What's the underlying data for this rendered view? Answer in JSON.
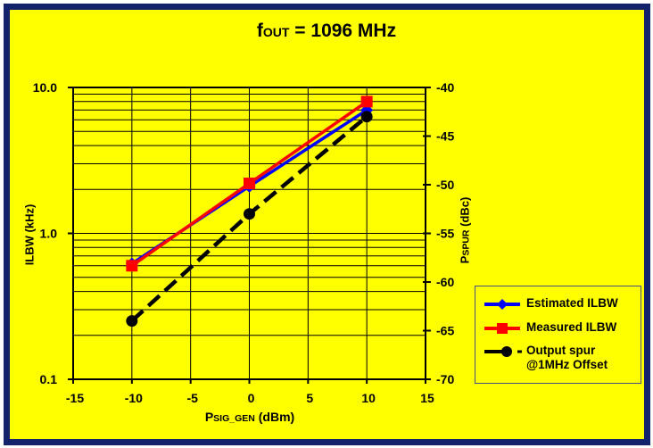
{
  "page": {
    "background_color": "#ffff00",
    "frame_border_color": "#14216b",
    "outer_margin_color": "#ffffff"
  },
  "title": {
    "main": "f",
    "sub": "OUT",
    "suffix": " = 1096 MHz"
  },
  "chart_data": {
    "type": "line",
    "title": "fOUT = 1096 MHz",
    "grid": true,
    "legend_position": "right-bottom",
    "x": [
      -10,
      0,
      10
    ],
    "x_axis": {
      "label": {
        "main": "P",
        "sub": "SIG_GEN",
        "suffix": " (dBm)"
      },
      "min": -15,
      "max": 15,
      "tick_values": [
        -15,
        -10,
        -5,
        0,
        5,
        10,
        15
      ],
      "tick_labels": [
        "-15",
        "-10",
        "-5",
        "0",
        "5",
        "10",
        "15"
      ]
    },
    "left_axis": {
      "label": "ILBW (kHz)",
      "scale": "log",
      "min": 0.1,
      "max": 10,
      "tick_values": [
        10,
        1,
        0.1
      ],
      "tick_labels": [
        "10.0",
        "1.0",
        "0.1"
      ]
    },
    "right_axis": {
      "label": {
        "main": "P",
        "sub": "SPUR",
        "suffix": " (dBc)"
      },
      "scale": "linear",
      "min": -70,
      "max": -40,
      "tick_values": [
        -40,
        -45,
        -50,
        -55,
        -60,
        -65,
        -70
      ],
      "tick_labels": [
        "-40",
        "-45",
        "-50",
        "-55",
        "-60",
        "-65",
        "-70"
      ]
    },
    "series": [
      {
        "name": "Estimated ILBW",
        "axis": "left",
        "unit": "kHz",
        "color": "#0000ff",
        "marker": "diamond",
        "line_style": "solid",
        "values": [
          0.62,
          2.1,
          7.0
        ]
      },
      {
        "name": "Measured ILBW",
        "axis": "left",
        "unit": "kHz",
        "color": "#ff0000",
        "marker": "square",
        "line_style": "solid",
        "values": [
          0.6,
          2.2,
          8.0
        ]
      },
      {
        "name": "Output spur  @1MHz Offset",
        "axis": "right",
        "unit": "dBc",
        "color": "#000000",
        "marker": "circle",
        "line_style": "dashed",
        "values": [
          -64,
          -53,
          -43
        ]
      }
    ]
  }
}
